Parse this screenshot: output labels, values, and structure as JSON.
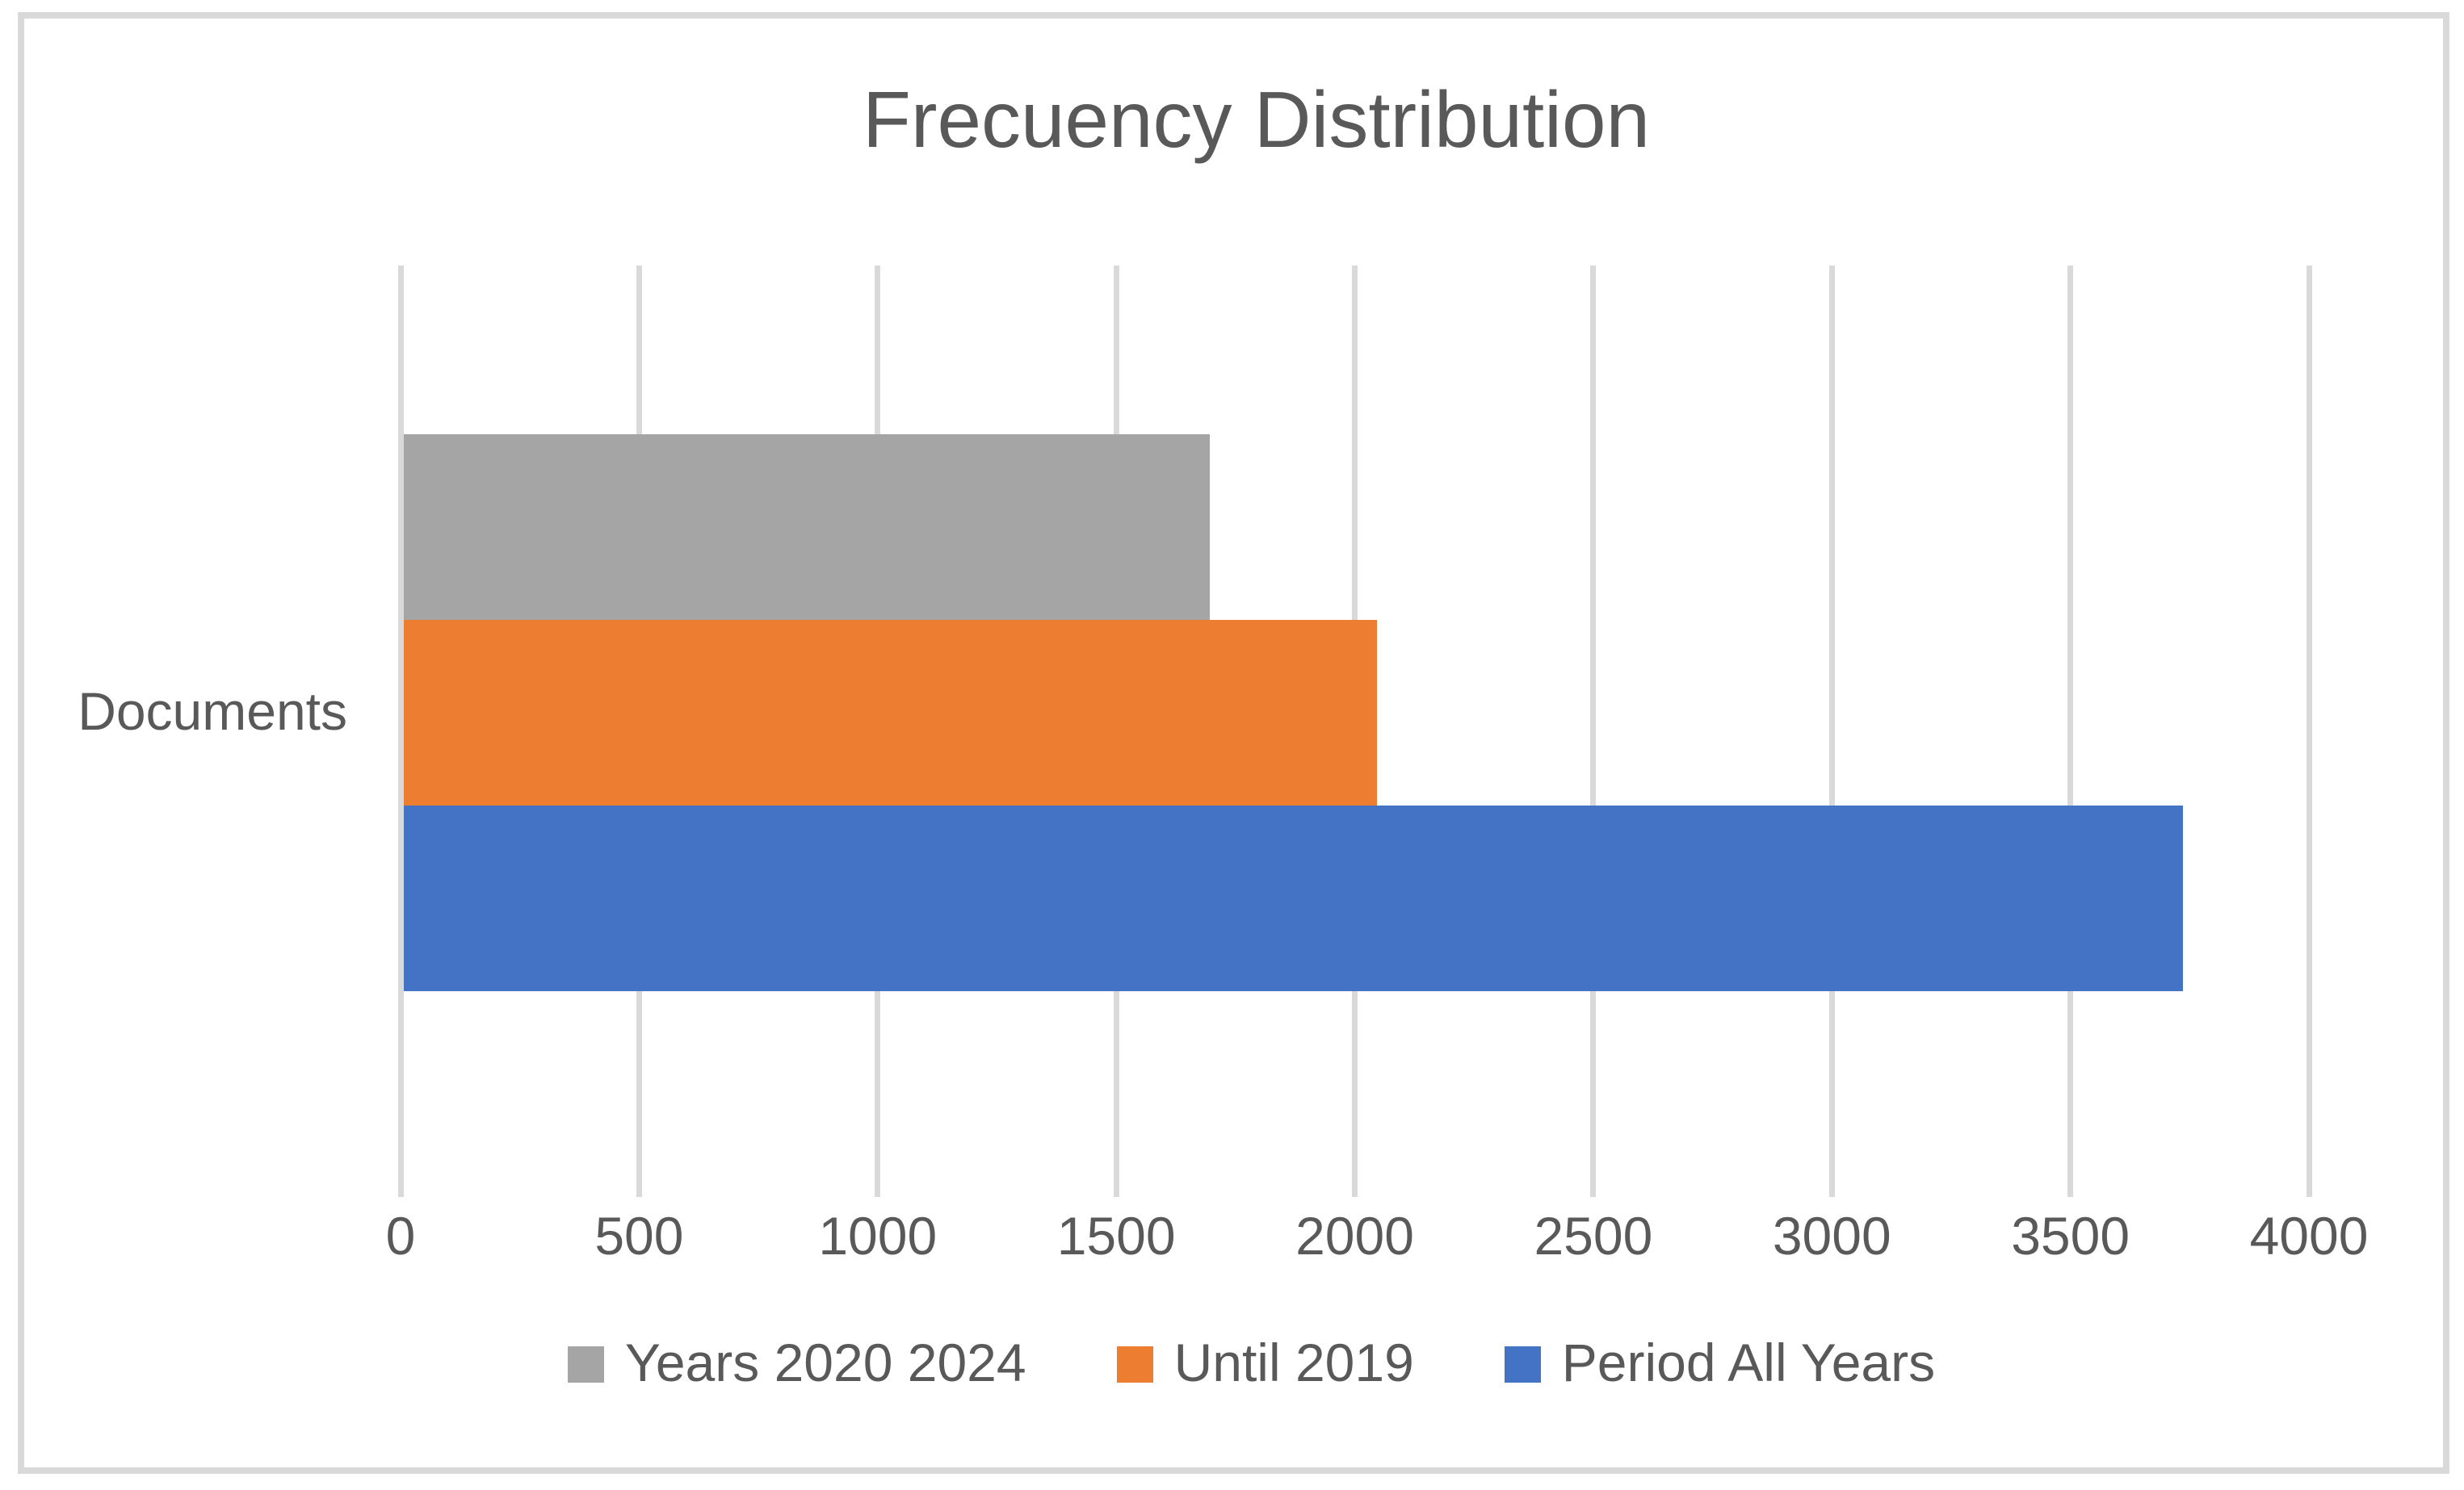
{
  "chart_data": {
    "type": "bar",
    "orientation": "horizontal",
    "title": "Frecuency Distribution",
    "categories": [
      "Documents"
    ],
    "series": [
      {
        "name": "Years 2020 2024",
        "values": [
          1690
        ],
        "color": "#A5A5A5"
      },
      {
        "name": "Until 2019",
        "values": [
          2040
        ],
        "color": "#ED7D31"
      },
      {
        "name": "Period All Years",
        "values": [
          3730
        ],
        "color": "#4472C4"
      }
    ],
    "xlabel": "",
    "ylabel": "",
    "xlim": [
      0,
      4000
    ],
    "x_ticks": [
      "0",
      "500",
      "1000",
      "1500",
      "2000",
      "2500",
      "3000",
      "3500",
      "4000"
    ],
    "grid": "vertical-major",
    "legend_position": "bottom",
    "colors": {
      "grid": "#D9D9D9",
      "frame_border": "#D9D9D9",
      "text": "#595959",
      "background": "#FFFFFF"
    }
  }
}
